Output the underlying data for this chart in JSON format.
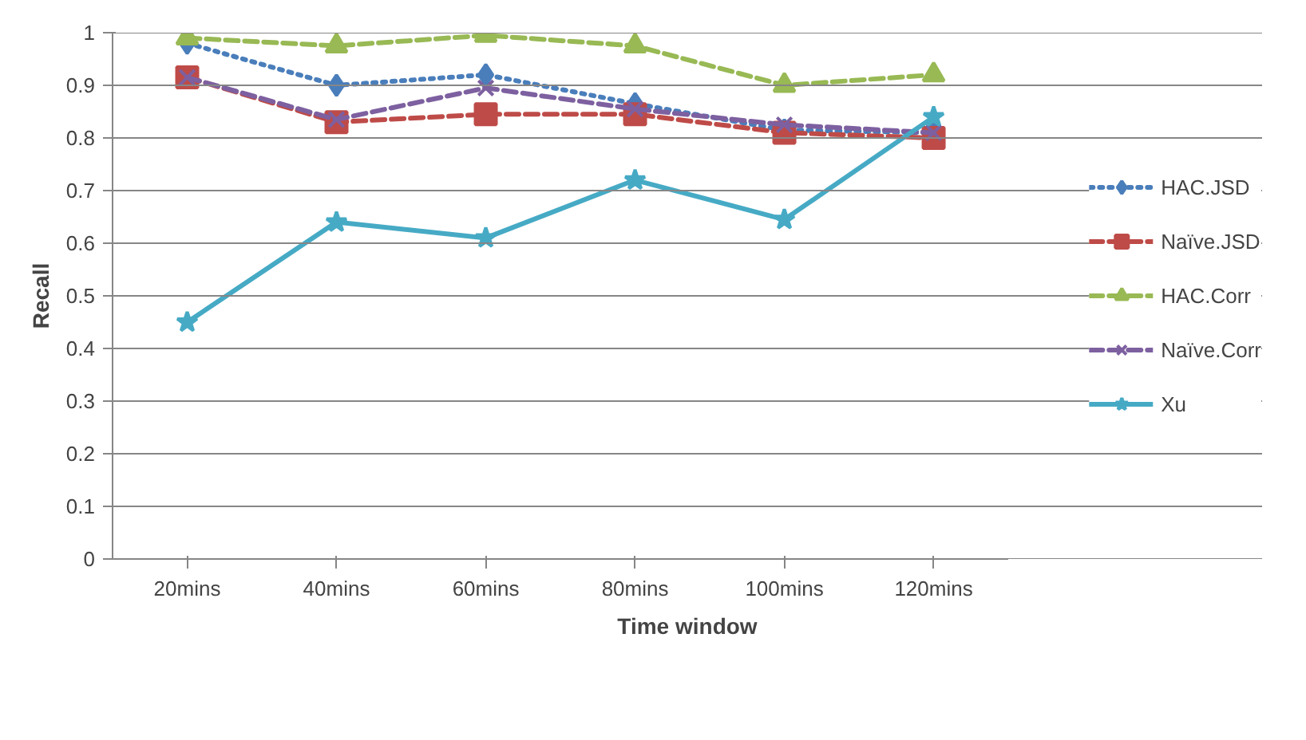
{
  "chart_data": {
    "type": "line",
    "xlabel": "Time window",
    "ylabel": "Recall",
    "categories": [
      "20mins",
      "40mins",
      "60mins",
      "80mins",
      "100mins",
      "120mins"
    ],
    "ylim": [
      0,
      1
    ],
    "yticks": [
      0,
      0.1,
      0.2,
      0.3,
      0.4,
      0.5,
      0.6,
      0.7,
      0.8,
      0.9,
      1
    ],
    "grid": "y",
    "legend": "right",
    "series": [
      {
        "name": "HAC.JSD",
        "color": "#4a7ebb",
        "marker": "diamond",
        "line_style": "dotted",
        "values": [
          0.98,
          0.9,
          0.92,
          0.865,
          0.815,
          0.81
        ]
      },
      {
        "name": "Naïve.JSD",
        "color": "#be4b48",
        "marker": "square",
        "line_style": "dashed",
        "values": [
          0.915,
          0.83,
          0.845,
          0.845,
          0.81,
          0.8
        ]
      },
      {
        "name": "HAC.Corr",
        "color": "#98b954",
        "marker": "triangle",
        "line_style": "dashed",
        "values": [
          0.99,
          0.975,
          0.995,
          0.975,
          0.9,
          0.92
        ]
      },
      {
        "name": "Naïve.Corr",
        "color": "#7d60a0",
        "marker": "cross",
        "line_style": "dashed",
        "values": [
          0.915,
          0.835,
          0.895,
          0.855,
          0.825,
          0.81
        ]
      },
      {
        "name": "Xu",
        "color": "#46aac5",
        "marker": "star",
        "line_style": "solid",
        "values": [
          0.45,
          0.64,
          0.61,
          0.72,
          0.645,
          0.84
        ]
      }
    ]
  }
}
